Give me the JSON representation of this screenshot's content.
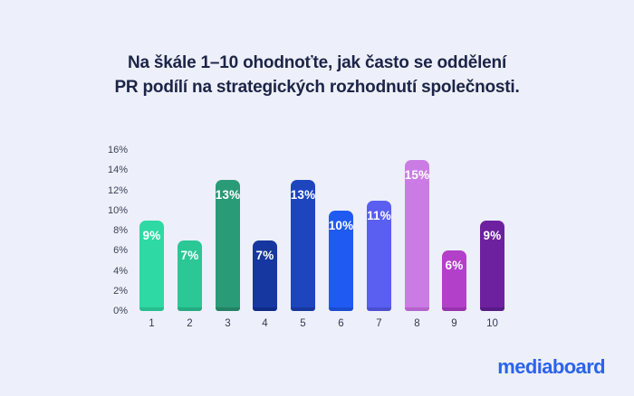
{
  "title": {
    "line1": "Na škále 1–10 ohodnoťte, jak často se oddělení",
    "line2": "PR podílí na strategických rozhodnutí společnosti."
  },
  "logo": {
    "text": "mediaboard",
    "color": "#2b63ee"
  },
  "colors": {
    "background": "#edeffa",
    "title_text": "#1c2447",
    "axis_label": "#3c4258",
    "bar_value_label": "#ffffff"
  },
  "chart_data": {
    "type": "bar",
    "categories": [
      "1",
      "2",
      "3",
      "4",
      "5",
      "6",
      "7",
      "8",
      "9",
      "10"
    ],
    "values": [
      9,
      7,
      13,
      7,
      13,
      10,
      11,
      15,
      6,
      9
    ],
    "value_labels": [
      "9%",
      "7%",
      "13%",
      "7%",
      "13%",
      "10%",
      "11%",
      "15%",
      "6%",
      "9%"
    ],
    "bar_colors": [
      "#2ed9a4",
      "#2bc795",
      "#2a9b77",
      "#16379f",
      "#1d46be",
      "#1f5bf2",
      "#5a5ff2",
      "#cb7ce4",
      "#b240c8",
      "#6e219f"
    ],
    "bar_edge_colors": [
      "#27bd8e",
      "#24ab80",
      "#238263",
      "#0f2b85",
      "#16379c",
      "#1a4cd0",
      "#4b4ed2",
      "#b463cc",
      "#9933ad",
      "#581a85"
    ],
    "yticks": [
      "16%",
      "14%",
      "12%",
      "10%",
      "8%",
      "6%",
      "4%",
      "2%",
      "0%"
    ],
    "ylim": [
      0,
      16
    ],
    "grid": false,
    "legend": "none",
    "xlabel": "",
    "ylabel": "",
    "title": "Na škále 1–10 ohodnoťte, jak často se oddělení PR podílí na strategických rozhodnutí společnosti."
  }
}
